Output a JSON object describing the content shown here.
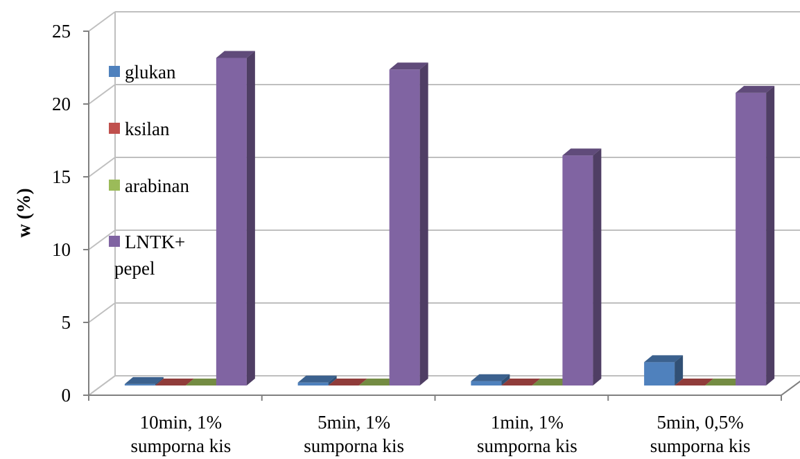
{
  "chart_data": {
    "type": "bar",
    "style": "3d-clustered-column",
    "title": "",
    "xlabel": "",
    "ylabel": "w (%)",
    "ylim": [
      0,
      25
    ],
    "yticks": [
      0,
      5,
      10,
      15,
      20,
      25
    ],
    "grid": true,
    "legend_position": "left-inside",
    "categories": [
      [
        "10min, 1%",
        "sumporna kis"
      ],
      [
        "5min, 1%",
        "sumporna kis"
      ],
      [
        "1min, 1%",
        "sumporna kis"
      ],
      [
        "5min, 0,5%",
        "sumporna kis"
      ]
    ],
    "series": [
      {
        "name": "glukan",
        "legend_lines": [
          "glukan"
        ],
        "color": "#4F81BD",
        "values": [
          0.1,
          0.2,
          0.3,
          1.6
        ]
      },
      {
        "name": "ksilan",
        "legend_lines": [
          "ksilan"
        ],
        "color": "#C0504D",
        "values": [
          0.0,
          0.0,
          0.0,
          0.0
        ]
      },
      {
        "name": "arabinan",
        "legend_lines": [
          "arabinan"
        ],
        "color": "#9BBB59",
        "values": [
          0.0,
          0.0,
          0.0,
          0.0
        ]
      },
      {
        "name": "LNTK+ pepel",
        "legend_lines": [
          "LNTK+",
          "pepel"
        ],
        "color": "#8064A2",
        "values": [
          22.5,
          21.7,
          15.8,
          20.1
        ]
      }
    ]
  }
}
